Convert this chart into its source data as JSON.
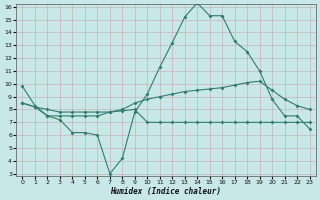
{
  "xlabel": "Humidex (Indice chaleur)",
  "x_values": [
    0,
    1,
    2,
    3,
    4,
    5,
    6,
    7,
    8,
    9,
    10,
    11,
    12,
    13,
    14,
    15,
    16,
    17,
    18,
    19,
    20,
    21,
    22,
    23
  ],
  "line1": [
    9.8,
    8.3,
    7.5,
    7.2,
    6.2,
    6.2,
    6.0,
    3.0,
    4.2,
    7.8,
    9.2,
    11.3,
    13.2,
    15.2,
    16.3,
    15.3,
    15.3,
    13.3,
    12.5,
    11.0,
    8.8,
    7.5,
    7.5,
    6.5
  ],
  "line2": [
    8.5,
    8.2,
    8.0,
    7.8,
    7.8,
    7.8,
    7.8,
    7.8,
    8.0,
    8.5,
    8.8,
    9.0,
    9.2,
    9.4,
    9.5,
    9.6,
    9.7,
    9.9,
    10.1,
    10.2,
    9.5,
    8.8,
    8.3,
    8.0
  ],
  "line3": [
    8.5,
    8.2,
    7.5,
    7.5,
    7.5,
    7.5,
    7.5,
    7.8,
    7.9,
    8.0,
    7.0,
    7.0,
    7.0,
    7.0,
    7.0,
    7.0,
    7.0,
    7.0,
    7.0,
    7.0,
    7.0,
    7.0,
    7.0,
    7.0
  ],
  "line_color": "#2e7d6e",
  "bg_color": "#c8e8e8",
  "grid_v_color": "#d4b8b8",
  "grid_h_color": "#d4b8b8",
  "ylim": [
    3,
    16
  ],
  "xlim": [
    -0.5,
    23.5
  ],
  "yticks": [
    3,
    4,
    5,
    6,
    7,
    8,
    9,
    10,
    11,
    12,
    13,
    14,
    15,
    16
  ],
  "xticks": [
    0,
    1,
    2,
    3,
    4,
    5,
    6,
    7,
    8,
    9,
    10,
    11,
    12,
    13,
    14,
    15,
    16,
    17,
    18,
    19,
    20,
    21,
    22,
    23
  ]
}
